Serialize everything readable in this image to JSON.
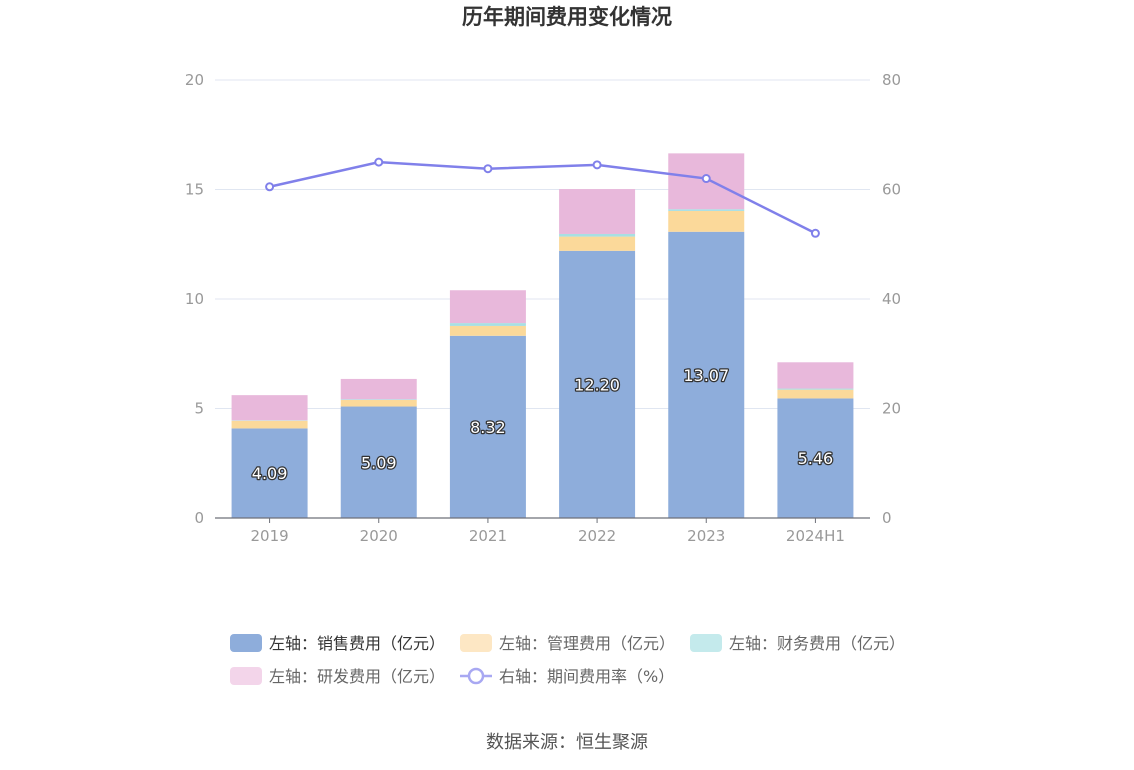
{
  "chart_data": {
    "type": "bar",
    "title": "历年期间费用变化情况",
    "categories": [
      "2019",
      "2020",
      "2021",
      "2022",
      "2023",
      "2024H1"
    ],
    "series": [
      {
        "name": "左轴：销售费用（亿元）",
        "kind": "bar",
        "axis": "left",
        "color": "#8eaddb",
        "values": [
          4.09,
          5.09,
          8.32,
          12.2,
          13.07,
          5.46
        ],
        "labels": [
          "4.09",
          "5.09",
          "8.32",
          "12.20",
          "13.07",
          "5.46"
        ]
      },
      {
        "name": "左轴：管理费用（亿元）",
        "kind": "bar",
        "axis": "left",
        "color": "#fbd99a",
        "values": [
          0.35,
          0.3,
          0.45,
          0.65,
          0.95,
          0.4
        ]
      },
      {
        "name": "左轴：财务费用（亿元）",
        "kind": "bar",
        "axis": "left",
        "color": "#a8dfe3",
        "values": [
          0.02,
          0.03,
          0.13,
          0.12,
          0.08,
          0.05
        ]
      },
      {
        "name": "左轴：研发费用（亿元）",
        "kind": "bar",
        "axis": "left",
        "color": "#e8b8db",
        "values": [
          1.15,
          0.93,
          1.5,
          2.05,
          2.55,
          1.2
        ]
      },
      {
        "name": "右轴：期间费用率（%）",
        "kind": "line",
        "axis": "right",
        "color": "#8080ea",
        "values": [
          60.5,
          65.0,
          63.8,
          64.5,
          62.0,
          52.0
        ]
      }
    ],
    "left_axis": {
      "min": 0,
      "max": 20,
      "ticks": [
        "0",
        "5",
        "10",
        "15",
        "20"
      ]
    },
    "right_axis": {
      "min": 0,
      "max": 80,
      "ticks": [
        "0",
        "20",
        "40",
        "60",
        "80"
      ]
    },
    "grid": true,
    "legend_position": "bottom"
  },
  "legend_swatch_colors": [
    "#8eaddb",
    "#fde7c4",
    "#c4eaec",
    "#f3d5ea",
    "#a8a8f2"
  ],
  "source_text": "数据来源：恒生聚源"
}
